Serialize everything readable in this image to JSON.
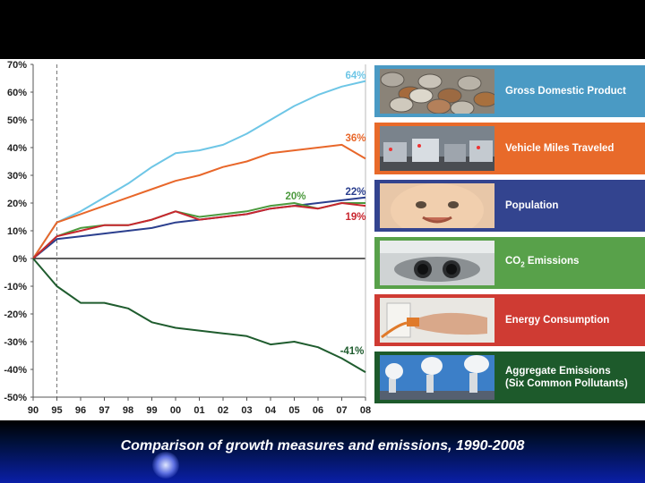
{
  "caption": "Comparison of growth measures and emissions, 1990-2008",
  "colors": {
    "gdp": "#6ec6e6",
    "vmt": "#e8672a",
    "population": "#2b3f8e",
    "co2": "#4c9a3e",
    "energy": "#c8262e",
    "aggregate": "#1f5c2e"
  },
  "legend": [
    {
      "key": "gdp",
      "label": "Gross Domestic Product",
      "photo": "coins-photo",
      "bg": "#4a9ac4"
    },
    {
      "key": "vmt",
      "label": "Vehicle Miles Traveled",
      "photo": "traffic-photo",
      "bg": "#e86a2a"
    },
    {
      "key": "population",
      "label": "Population",
      "photo": "baby-photo",
      "bg": "#33448f"
    },
    {
      "key": "co2",
      "label": "CO",
      "sub": "2",
      "label_tail": " Emissions",
      "photo": "exhaust-pipe-photo",
      "bg": "#58a14a"
    },
    {
      "key": "energy",
      "label": "Energy Consumption",
      "photo": "plug-photo",
      "bg": "#cf3b33"
    },
    {
      "key": "aggregate",
      "label": "Aggregate Emissions",
      "label2": "(Six Common Pollutants)",
      "photo": "smokestacks-photo",
      "bg": "#1d5a2b"
    }
  ],
  "chart_data": {
    "type": "line",
    "title": "",
    "xlabel": "",
    "ylabel": "",
    "categories": [
      "90",
      "95",
      "96",
      "97",
      "98",
      "99",
      "00",
      "01",
      "02",
      "03",
      "04",
      "05",
      "06",
      "07",
      "08"
    ],
    "ylim": [
      -50,
      70
    ],
    "yticks": [
      "70%",
      "60%",
      "50%",
      "40%",
      "30%",
      "20%",
      "10%",
      "0%",
      "-10%",
      "-20%",
      "-30%",
      "-40%",
      "-50%"
    ],
    "reference_line_at": "95",
    "series": [
      {
        "name": "Gross Domestic Product",
        "key": "gdp",
        "values": [
          0,
          13,
          17,
          22,
          27,
          33,
          38,
          39,
          41,
          45,
          50,
          55,
          59,
          62,
          64
        ],
        "end_label": "64%"
      },
      {
        "name": "Vehicle Miles Traveled",
        "key": "vmt",
        "values": [
          0,
          13,
          16,
          19,
          22,
          25,
          28,
          30,
          33,
          35,
          38,
          39,
          40,
          41,
          36
        ],
        "end_label": "36%"
      },
      {
        "name": "Population",
        "key": "population",
        "values": [
          0,
          7,
          8,
          9,
          10,
          11,
          13,
          14,
          15,
          16,
          18,
          19,
          20,
          21,
          22
        ],
        "end_label": "22%"
      },
      {
        "name": "CO2 Emissions",
        "key": "co2",
        "values": [
          0,
          8,
          11,
          12,
          12,
          14,
          17,
          15,
          16,
          17,
          19,
          20,
          18,
          20,
          20
        ],
        "end_label": "20%"
      },
      {
        "name": "Energy Consumption",
        "key": "energy",
        "values": [
          0,
          8,
          10,
          12,
          12,
          14,
          17,
          14,
          15,
          16,
          18,
          19,
          18,
          20,
          19
        ],
        "end_label": "19%"
      },
      {
        "name": "Aggregate Emissions (Six Common Pollutants)",
        "key": "aggregate",
        "values": [
          0,
          -10,
          -16,
          -16,
          -18,
          -23,
          -25,
          -26,
          -27,
          -28,
          -31,
          -30,
          -32,
          -36,
          -41
        ],
        "end_label": "-41%"
      }
    ]
  }
}
